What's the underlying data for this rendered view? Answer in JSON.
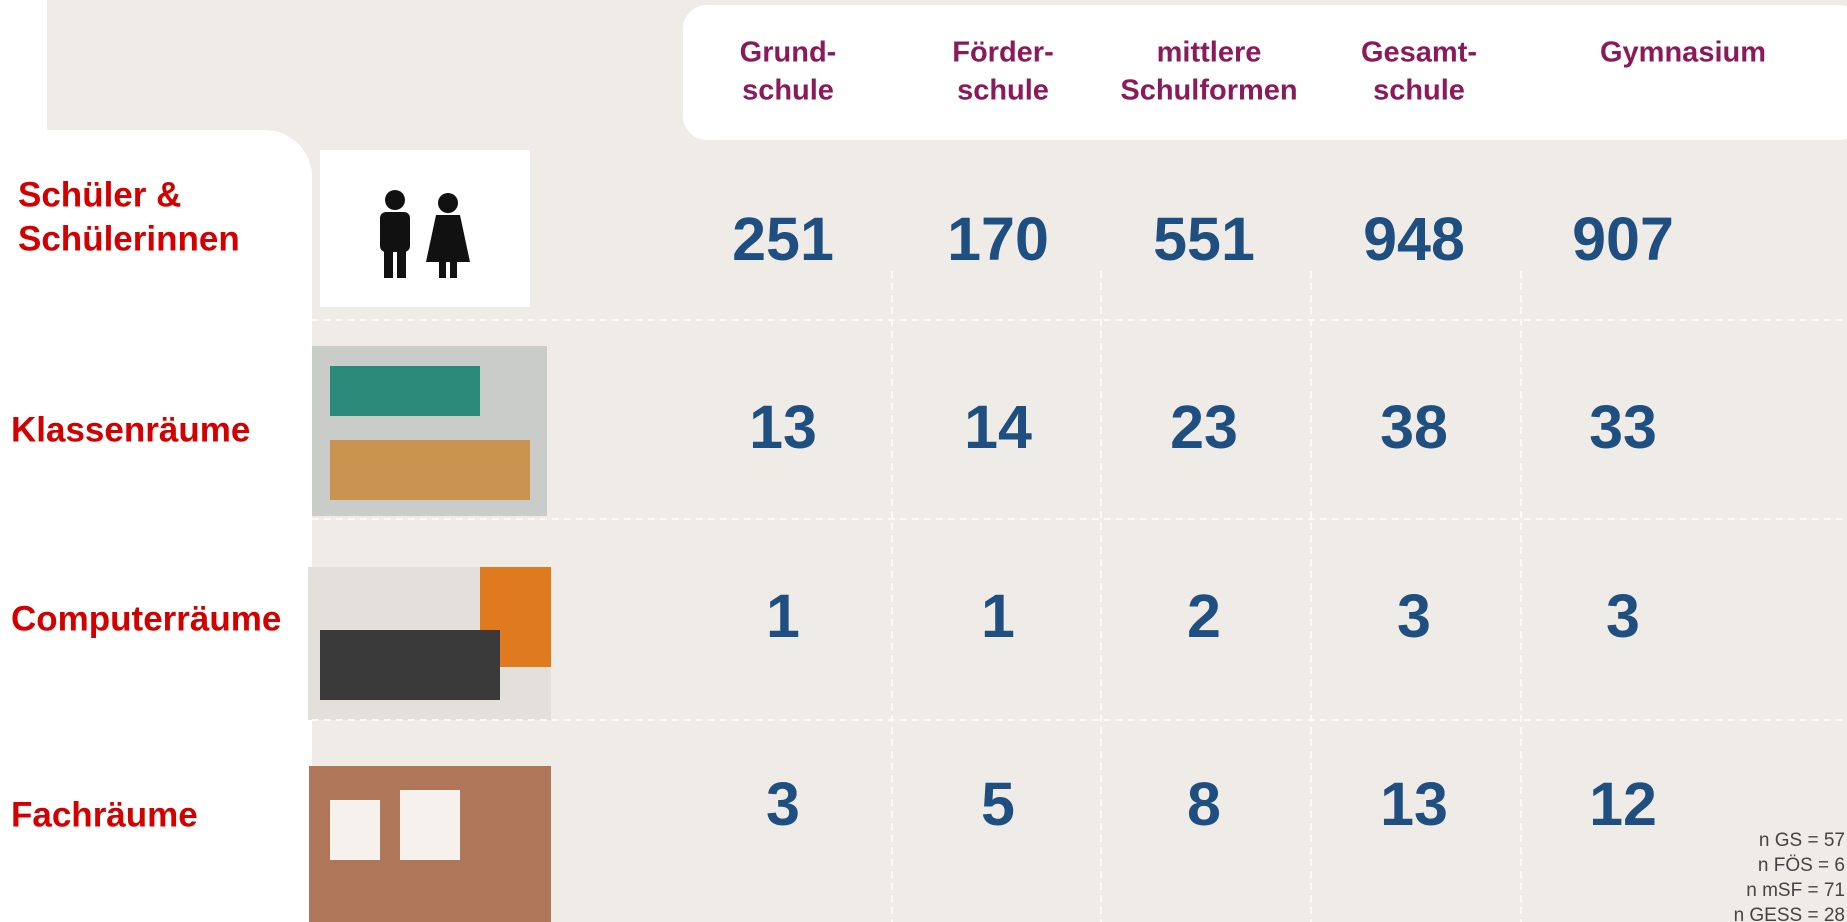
{
  "columns": [
    [
      "Grund-",
      "schule"
    ],
    [
      "Förder-",
      "schule"
    ],
    [
      "mittlere",
      "Schulformen"
    ],
    [
      "Gesamt-",
      "schule"
    ],
    [
      "Gymnasium"
    ]
  ],
  "rows": [
    {
      "label": [
        "Schüler &",
        "Schülerinnen"
      ],
      "values": [
        "251",
        "170",
        "551",
        "948",
        "907"
      ]
    },
    {
      "label": [
        "Klassenräume"
      ],
      "values": [
        "13",
        "14",
        "23",
        "38",
        "33"
      ]
    },
    {
      "label": [
        "Computerräume"
      ],
      "values": [
        "1",
        "1",
        "2",
        "3",
        "3"
      ]
    },
    {
      "label": [
        "Fachräume"
      ],
      "values": [
        "3",
        "5",
        "8",
        "13",
        "12"
      ]
    }
  ],
  "notes": [
    "n GS = 57",
    "n FÖS = 6",
    "n mSF = 71",
    "n GESS = 28"
  ]
}
